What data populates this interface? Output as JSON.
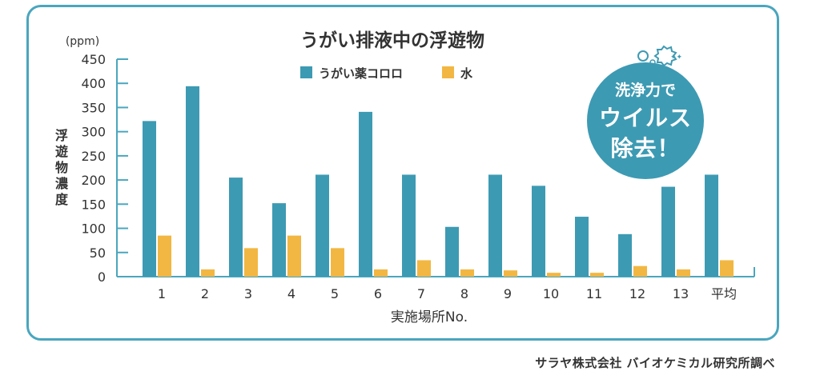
{
  "chart_data": {
    "type": "bar",
    "title": "うがい排液中の浮遊物",
    "unit": "(ppm)",
    "ylabel": "浮遊物濃度",
    "xlabel": "実施場所No.",
    "ylim": [
      0,
      450
    ],
    "yticks": [
      "450",
      "400",
      "350",
      "300",
      "250",
      "200",
      "150",
      "100",
      "50",
      "0"
    ],
    "categories": [
      "1",
      "2",
      "3",
      "4",
      "5",
      "6",
      "7",
      "8",
      "9",
      "10",
      "11",
      "12",
      "13",
      "平均"
    ],
    "legend_position": "top-center",
    "grid": false,
    "series": [
      {
        "name": "うがい薬コロロ",
        "color": "#3d9ab3",
        "values": [
          322,
          394,
          205,
          152,
          211,
          341,
          211,
          103,
          211,
          188,
          124,
          88,
          186,
          211
        ]
      },
      {
        "name": "水",
        "color": "#f2b742",
        "values": [
          85,
          15,
          59,
          85,
          59,
          15,
          34,
          15,
          13,
          8,
          8,
          22,
          15,
          34
        ]
      }
    ]
  },
  "badge": {
    "line1": "洗浄力で",
    "line2": "ウイルス",
    "line3": "除去！"
  },
  "source": "サラヤ株式会社 バイオケミカル研究所調べ",
  "colors": {
    "frame": "#4aa6be",
    "axis": "#4aa6be",
    "badge": "#3d9ab3"
  }
}
